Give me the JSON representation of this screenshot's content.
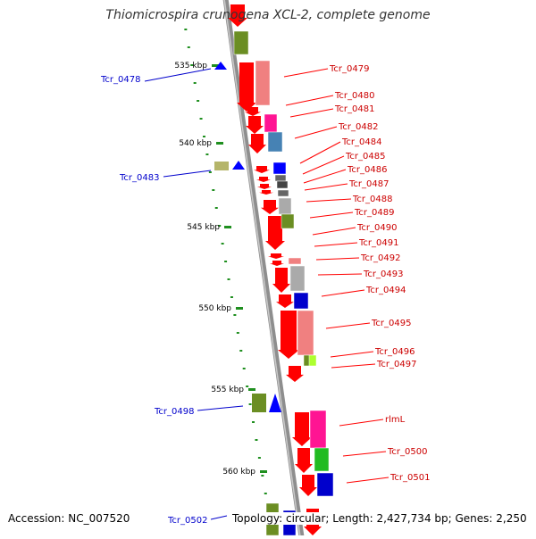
{
  "title": "Thiomicrospira crunogena XCL-2, complete genome",
  "accession_text": "Accession: NC_007520",
  "summary_text": "Topology: circular; Length: 2,427,734 bp; Genes: 2,250",
  "colors": {
    "axis": "#9a9a9a",
    "ruler": "#1f8f1f",
    "forward_gene": "#ff0000",
    "label_forward": "#cc0000",
    "label_reverse": "#0000cc"
  },
  "ruler_ticks": [
    {
      "label": "535 kbp"
    },
    {
      "label": "540 kbp"
    },
    {
      "label": "545 kbp"
    },
    {
      "label": "550 kbp"
    },
    {
      "label": "555 kbp"
    },
    {
      "label": "560 kbp"
    }
  ],
  "genes_right": [
    {
      "label": "Tcr_0479"
    },
    {
      "label": "Tcr_0480"
    },
    {
      "label": "Tcr_0481"
    },
    {
      "label": "Tcr_0482"
    },
    {
      "label": "Tcr_0484"
    },
    {
      "label": "Tcr_0485"
    },
    {
      "label": "Tcr_0486"
    },
    {
      "label": "Tcr_0487"
    },
    {
      "label": "Tcr_0488"
    },
    {
      "label": "Tcr_0489"
    },
    {
      "label": "Tcr_0490"
    },
    {
      "label": "Tcr_0491"
    },
    {
      "label": "Tcr_0492"
    },
    {
      "label": "Tcr_0493"
    },
    {
      "label": "Tcr_0494"
    },
    {
      "label": "Tcr_0495"
    },
    {
      "label": "Tcr_0496"
    },
    {
      "label": "Tcr_0497"
    },
    {
      "label": "rlmL"
    },
    {
      "label": "Tcr_0500"
    },
    {
      "label": "Tcr_0501"
    }
  ],
  "genes_left": [
    {
      "label": "Tcr_0478"
    },
    {
      "label": "Tcr_0483"
    },
    {
      "label": "Tcr_0498"
    },
    {
      "label": "Tcr_0502"
    }
  ]
}
